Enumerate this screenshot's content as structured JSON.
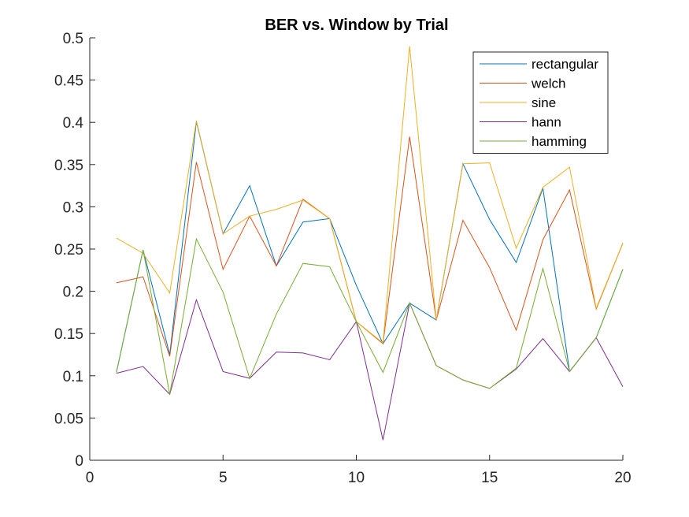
{
  "chart_data": {
    "type": "line",
    "title": "BER vs. Window by Trial",
    "xlabel": "",
    "ylabel": "",
    "xlim": [
      0,
      20
    ],
    "ylim": [
      0,
      0.5
    ],
    "xticks": [
      0,
      5,
      10,
      15,
      20
    ],
    "xtick_labels": [
      "0",
      "5",
      "10",
      "15",
      "20"
    ],
    "yticks": [
      0,
      0.05,
      0.1,
      0.15,
      0.2,
      0.25,
      0.3,
      0.35,
      0.4,
      0.45,
      0.5
    ],
    "ytick_labels": [
      "0",
      "0.05",
      "0.1",
      "0.15",
      "0.2",
      "0.25",
      "0.3",
      "0.35",
      "0.4",
      "0.45",
      "0.5"
    ],
    "grid": false,
    "legend_position": "top-right",
    "x": [
      1,
      2,
      3,
      4,
      5,
      6,
      7,
      8,
      9,
      10,
      11,
      12,
      13,
      14,
      15,
      16,
      17,
      18,
      19,
      20
    ],
    "series": [
      {
        "name": "rectangular",
        "color": "#0072BD",
        "values": [
          0.104,
          0.249,
          0.125,
          0.401,
          0.268,
          0.325,
          0.23,
          0.282,
          0.286,
          0.207,
          0.138,
          0.186,
          0.166,
          0.351,
          0.285,
          0.234,
          0.322,
          0.105,
          0.145,
          0.226
        ]
      },
      {
        "name": "welch",
        "color": "#D95319",
        "values": [
          0.21,
          0.217,
          0.123,
          0.353,
          0.226,
          0.289,
          0.23,
          0.309,
          0.286,
          0.164,
          0.138,
          0.383,
          0.166,
          0.284,
          0.228,
          0.154,
          0.261,
          0.32,
          0.179,
          0.257
        ]
      },
      {
        "name": "sine",
        "color": "#EDB120",
        "values": [
          0.263,
          0.245,
          0.198,
          0.402,
          0.268,
          0.289,
          0.297,
          0.308,
          0.286,
          0.164,
          0.139,
          0.49,
          0.166,
          0.351,
          0.352,
          0.251,
          0.323,
          0.347,
          0.18,
          0.257
        ]
      },
      {
        "name": "hann",
        "color": "#7E2F8E",
        "values": [
          0.103,
          0.111,
          0.078,
          0.19,
          0.105,
          0.097,
          0.128,
          0.127,
          0.119,
          0.164,
          0.024,
          0.186,
          0.112,
          0.095,
          0.085,
          0.108,
          0.144,
          0.105,
          0.145,
          0.087
        ]
      },
      {
        "name": "hamming",
        "color": "#77AC30",
        "values": [
          0.104,
          0.249,
          0.078,
          0.262,
          0.199,
          0.097,
          0.173,
          0.233,
          0.229,
          0.164,
          0.104,
          0.186,
          0.112,
          0.095,
          0.085,
          0.109,
          0.227,
          0.105,
          0.145,
          0.226
        ]
      }
    ]
  }
}
